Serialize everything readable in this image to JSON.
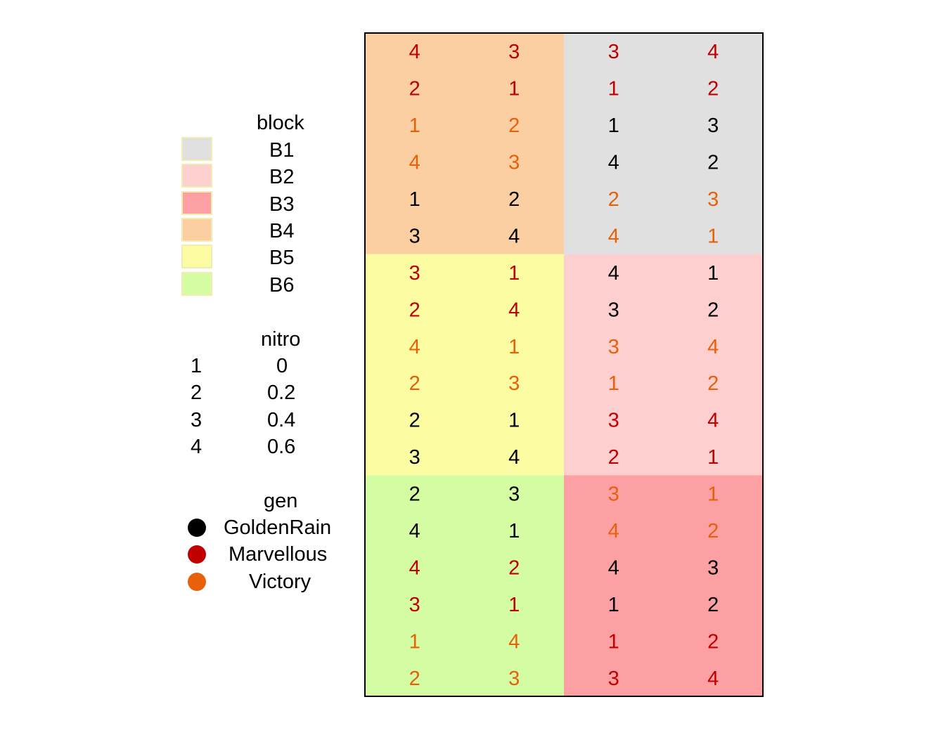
{
  "chart_data": {
    "type": "heatmap",
    "title": "",
    "xlabel": "",
    "ylabel": "",
    "grid": false,
    "ncols": 4,
    "nrows": 18,
    "blocks": [
      {
        "name": "B4",
        "rows": [
          1,
          6
        ],
        "cols": [
          1,
          2
        ],
        "color": "#fccfa3"
      },
      {
        "name": "B1",
        "rows": [
          1,
          6
        ],
        "cols": [
          3,
          4
        ],
        "color": "#e0e0e0"
      },
      {
        "name": "B5",
        "rows": [
          7,
          12
        ],
        "cols": [
          1,
          2
        ],
        "color": "#fcfca3"
      },
      {
        "name": "B2",
        "rows": [
          7,
          12
        ],
        "cols": [
          3,
          4
        ],
        "color": "#fdcfcf"
      },
      {
        "name": "B6",
        "rows": [
          13,
          18
        ],
        "cols": [
          1,
          2
        ],
        "color": "#d4fca3"
      },
      {
        "name": "B3",
        "rows": [
          13,
          18
        ],
        "cols": [
          3,
          4
        ],
        "color": "#fca0a3"
      }
    ],
    "cells": [
      [
        {
          "n": "4",
          "g": "Marvellous"
        },
        {
          "n": "3",
          "g": "Marvellous"
        },
        {
          "n": "3",
          "g": "Marvellous"
        },
        {
          "n": "4",
          "g": "Marvellous"
        }
      ],
      [
        {
          "n": "2",
          "g": "Marvellous"
        },
        {
          "n": "1",
          "g": "Marvellous"
        },
        {
          "n": "1",
          "g": "Marvellous"
        },
        {
          "n": "2",
          "g": "Marvellous"
        }
      ],
      [
        {
          "n": "1",
          "g": "Victory"
        },
        {
          "n": "2",
          "g": "Victory"
        },
        {
          "n": "1",
          "g": "GoldenRain"
        },
        {
          "n": "3",
          "g": "GoldenRain"
        }
      ],
      [
        {
          "n": "4",
          "g": "Victory"
        },
        {
          "n": "3",
          "g": "Victory"
        },
        {
          "n": "4",
          "g": "GoldenRain"
        },
        {
          "n": "2",
          "g": "GoldenRain"
        }
      ],
      [
        {
          "n": "1",
          "g": "GoldenRain"
        },
        {
          "n": "2",
          "g": "GoldenRain"
        },
        {
          "n": "2",
          "g": "Victory"
        },
        {
          "n": "3",
          "g": "Victory"
        }
      ],
      [
        {
          "n": "3",
          "g": "GoldenRain"
        },
        {
          "n": "4",
          "g": "GoldenRain"
        },
        {
          "n": "4",
          "g": "Victory"
        },
        {
          "n": "1",
          "g": "Victory"
        }
      ],
      [
        {
          "n": "3",
          "g": "Marvellous"
        },
        {
          "n": "1",
          "g": "Marvellous"
        },
        {
          "n": "4",
          "g": "GoldenRain"
        },
        {
          "n": "1",
          "g": "GoldenRain"
        }
      ],
      [
        {
          "n": "2",
          "g": "Marvellous"
        },
        {
          "n": "4",
          "g": "Marvellous"
        },
        {
          "n": "3",
          "g": "GoldenRain"
        },
        {
          "n": "2",
          "g": "GoldenRain"
        }
      ],
      [
        {
          "n": "4",
          "g": "Victory"
        },
        {
          "n": "1",
          "g": "Victory"
        },
        {
          "n": "3",
          "g": "Victory"
        },
        {
          "n": "4",
          "g": "Victory"
        }
      ],
      [
        {
          "n": "2",
          "g": "Victory"
        },
        {
          "n": "3",
          "g": "Victory"
        },
        {
          "n": "1",
          "g": "Victory"
        },
        {
          "n": "2",
          "g": "Victory"
        }
      ],
      [
        {
          "n": "2",
          "g": "GoldenRain"
        },
        {
          "n": "1",
          "g": "GoldenRain"
        },
        {
          "n": "3",
          "g": "Marvellous"
        },
        {
          "n": "4",
          "g": "Marvellous"
        }
      ],
      [
        {
          "n": "3",
          "g": "GoldenRain"
        },
        {
          "n": "4",
          "g": "GoldenRain"
        },
        {
          "n": "2",
          "g": "Marvellous"
        },
        {
          "n": "1",
          "g": "Marvellous"
        }
      ],
      [
        {
          "n": "2",
          "g": "GoldenRain"
        },
        {
          "n": "3",
          "g": "GoldenRain"
        },
        {
          "n": "3",
          "g": "Victory"
        },
        {
          "n": "1",
          "g": "Victory"
        }
      ],
      [
        {
          "n": "4",
          "g": "GoldenRain"
        },
        {
          "n": "1",
          "g": "GoldenRain"
        },
        {
          "n": "4",
          "g": "Victory"
        },
        {
          "n": "2",
          "g": "Victory"
        }
      ],
      [
        {
          "n": "4",
          "g": "Marvellous"
        },
        {
          "n": "2",
          "g": "Marvellous"
        },
        {
          "n": "4",
          "g": "GoldenRain"
        },
        {
          "n": "3",
          "g": "GoldenRain"
        }
      ],
      [
        {
          "n": "3",
          "g": "Marvellous"
        },
        {
          "n": "1",
          "g": "Marvellous"
        },
        {
          "n": "1",
          "g": "GoldenRain"
        },
        {
          "n": "2",
          "g": "GoldenRain"
        }
      ],
      [
        {
          "n": "1",
          "g": "Victory"
        },
        {
          "n": "4",
          "g": "Victory"
        },
        {
          "n": "1",
          "g": "Marvellous"
        },
        {
          "n": "2",
          "g": "Marvellous"
        }
      ],
      [
        {
          "n": "2",
          "g": "Victory"
        },
        {
          "n": "3",
          "g": "Victory"
        },
        {
          "n": "3",
          "g": "Marvellous"
        },
        {
          "n": "4",
          "g": "Marvellous"
        }
      ]
    ],
    "gen_colors": {
      "GoldenRain": "#000000",
      "Marvellous": "#c00000",
      "Victory": "#e8600a"
    }
  },
  "legend": {
    "block": {
      "title": "block",
      "items": [
        {
          "label": "B1",
          "color": "#e0e0e0"
        },
        {
          "label": "B2",
          "color": "#fdcfcf"
        },
        {
          "label": "B3",
          "color": "#fca0a3"
        },
        {
          "label": "B4",
          "color": "#fccfa3"
        },
        {
          "label": "B5",
          "color": "#fcfca3"
        },
        {
          "label": "B6",
          "color": "#d4fca3"
        }
      ]
    },
    "nitro": {
      "title": "nitro",
      "items": [
        {
          "code": "1",
          "label": "0"
        },
        {
          "code": "2",
          "label": "0.2"
        },
        {
          "code": "3",
          "label": "0.4"
        },
        {
          "code": "4",
          "label": "0.6"
        }
      ]
    },
    "gen": {
      "title": "gen",
      "items": [
        {
          "label": "GoldenRain",
          "color": "#000000"
        },
        {
          "label": "Marvellous",
          "color": "#c00000"
        },
        {
          "label": "Victory",
          "color": "#e8600a"
        }
      ]
    }
  }
}
